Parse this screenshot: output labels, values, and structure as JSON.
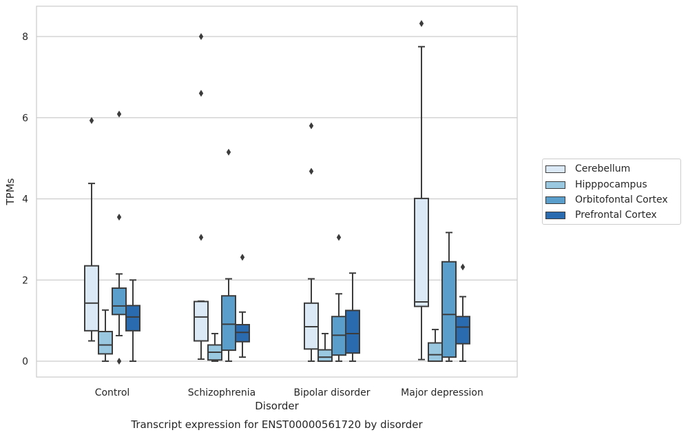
{
  "chart_data": {
    "type": "boxplot",
    "title": "Transcript expression for ENST00000561720 by disorder",
    "xlabel": "Disorder",
    "ylabel": "TPMs",
    "ylim": [
      -0.4,
      8.75
    ],
    "yticks": [
      0,
      2,
      4,
      6,
      8
    ],
    "grid": "horizontal",
    "legend_placement": "right",
    "categories": [
      "Control",
      "Schizophrenia",
      "Bipolar disorder",
      "Major depression"
    ],
    "series": [
      {
        "name": "Cerebellum",
        "color": "#dbe9f6",
        "boxes": [
          {
            "whislo": 0.5,
            "q1": 0.75,
            "med": 1.43,
            "q3": 2.35,
            "whishi": 4.38,
            "fliers": [
              5.93
            ]
          },
          {
            "whislo": 0.05,
            "q1": 0.5,
            "med": 1.09,
            "q3": 1.47,
            "whishi": 1.48,
            "fliers": [
              3.05,
              6.6,
              8.0
            ]
          },
          {
            "whislo": 0.0,
            "q1": 0.3,
            "med": 0.85,
            "q3": 1.43,
            "whishi": 2.03,
            "fliers": [
              4.68,
              5.8
            ]
          },
          {
            "whislo": 0.04,
            "q1": 1.35,
            "med": 1.46,
            "q3": 4.01,
            "whishi": 7.75,
            "fliers": [
              8.32
            ]
          }
        ]
      },
      {
        "name": "Hipppocampus",
        "color": "#9ac8e0",
        "boxes": [
          {
            "whislo": 0.0,
            "q1": 0.18,
            "med": 0.4,
            "q3": 0.73,
            "whishi": 1.26,
            "fliers": []
          },
          {
            "whislo": 0.0,
            "q1": 0.03,
            "med": 0.22,
            "q3": 0.4,
            "whishi": 0.68,
            "fliers": []
          },
          {
            "whislo": 0.0,
            "q1": 0.0,
            "med": 0.1,
            "q3": 0.28,
            "whishi": 0.68,
            "fliers": []
          },
          {
            "whislo": 0.0,
            "q1": 0.0,
            "med": 0.16,
            "q3": 0.45,
            "whishi": 0.78,
            "fliers": []
          }
        ]
      },
      {
        "name": "Orbitofontal Cortex",
        "color": "#5a9ecc",
        "boxes": [
          {
            "whislo": 0.63,
            "q1": 1.15,
            "med": 1.36,
            "q3": 1.8,
            "whishi": 2.15,
            "fliers": [
              0.0,
              3.55,
              6.09
            ]
          },
          {
            "whislo": 0.0,
            "q1": 0.27,
            "med": 0.91,
            "q3": 1.61,
            "whishi": 2.03,
            "fliers": [
              5.15
            ]
          },
          {
            "whislo": 0.0,
            "q1": 0.15,
            "med": 0.64,
            "q3": 1.1,
            "whishi": 1.66,
            "fliers": [
              3.05
            ]
          },
          {
            "whislo": 0.0,
            "q1": 0.1,
            "med": 1.15,
            "q3": 2.45,
            "whishi": 3.17,
            "fliers": []
          }
        ]
      },
      {
        "name": "Prefrontal Cortex",
        "color": "#2a6aaf",
        "boxes": [
          {
            "whislo": 0.0,
            "q1": 0.75,
            "med": 1.09,
            "q3": 1.37,
            "whishi": 2.0,
            "fliers": []
          },
          {
            "whislo": 0.1,
            "q1": 0.48,
            "med": 0.71,
            "q3": 0.9,
            "whishi": 1.21,
            "fliers": [
              2.56
            ]
          },
          {
            "whislo": 0.0,
            "q1": 0.2,
            "med": 0.68,
            "q3": 1.25,
            "whishi": 2.17,
            "fliers": []
          },
          {
            "whislo": 0.0,
            "q1": 0.43,
            "med": 0.84,
            "q3": 1.1,
            "whishi": 1.59,
            "fliers": [
              2.32
            ]
          }
        ]
      }
    ]
  }
}
